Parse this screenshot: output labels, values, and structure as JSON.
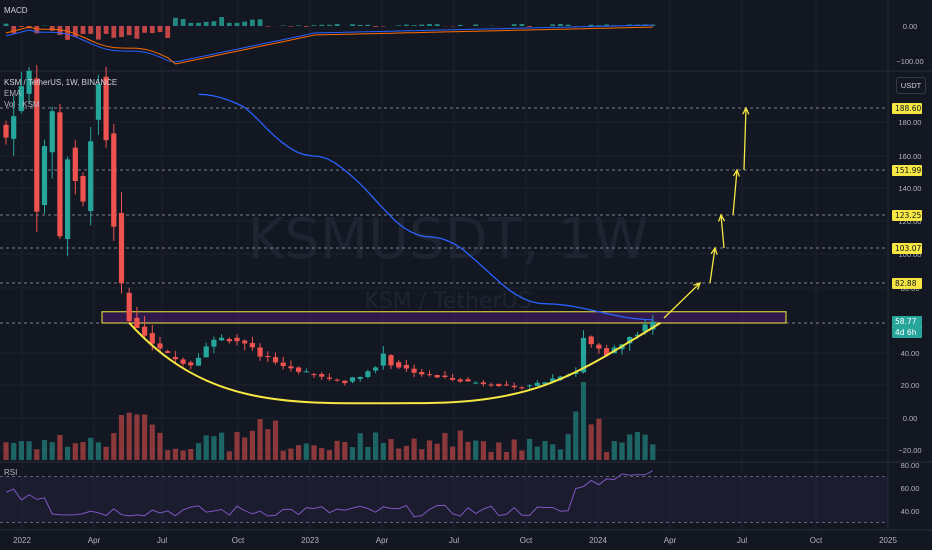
{
  "watermark": {
    "symbol": "KSMUSDT, 1W",
    "sub": "KSM / TetherUS"
  },
  "main_pane": {
    "title": "KSM / TetherUS, 1W, BINANCE",
    "ema_label": "EMA",
    "vol_label": "Vol · KSM",
    "currency_button": "USDT"
  },
  "macd_pane": {
    "label": "MACD",
    "axis_ticks": [
      "0.00",
      "−100.00"
    ]
  },
  "rsi_pane": {
    "label": "RSI",
    "axis_ticks": [
      "80.00",
      "60.00",
      "40.00"
    ]
  },
  "price_axis_ticks": [
    "180.00",
    "160.00",
    "140.00",
    "120.00",
    "100.00",
    "80.00",
    "40.00",
    "20.00",
    "0.00",
    "−20.00"
  ],
  "level_labels": [
    "188.60",
    "151.99",
    "123.25",
    "103.07",
    "82.88",
    "57.90"
  ],
  "current_price": {
    "price": "58.77",
    "countdown": "4d 6h"
  },
  "time_axis": [
    "2022",
    "Apr",
    "Jul",
    "Oct",
    "2023",
    "Apr",
    "Jul",
    "Oct",
    "2024",
    "Apr",
    "Jul",
    "Oct",
    "2025"
  ],
  "colors": {
    "background": "#131722",
    "up": "#26a69a",
    "down": "#ef5350",
    "ema": "#2962ff",
    "annotation": "#f5e642",
    "zone_fill": "#4a1d6e",
    "rsi": "#7e57c2"
  },
  "chart_data": {
    "type": "candlestick",
    "timeframe": "1W",
    "x_ticks": [
      "2022",
      "Apr",
      "Jul",
      "Oct",
      "2023",
      "Apr",
      "Jul",
      "Oct",
      "2024",
      "Apr",
      "Jul",
      "Oct",
      "2025"
    ],
    "y_ticks": [
      180,
      160,
      140,
      120,
      100,
      80,
      40,
      20,
      0,
      -20
    ],
    "price_path": [
      [
        0,
        170
      ],
      [
        3,
        230
      ],
      [
        4,
        130
      ],
      [
        6,
        190
      ],
      [
        7,
        110
      ],
      [
        8,
        160
      ],
      [
        10,
        130
      ],
      [
        11,
        175
      ],
      [
        12,
        220
      ],
      [
        13,
        170
      ],
      [
        14,
        120
      ],
      [
        15,
        80
      ],
      [
        16,
        60
      ],
      [
        18,
        52
      ],
      [
        20,
        42
      ],
      [
        22,
        36
      ],
      [
        24,
        33
      ],
      [
        26,
        44
      ],
      [
        28,
        50
      ],
      [
        31,
        46
      ],
      [
        33,
        38
      ],
      [
        36,
        32
      ],
      [
        38,
        29
      ],
      [
        40,
        26
      ],
      [
        42,
        24
      ],
      [
        44,
        22
      ],
      [
        46,
        26
      ],
      [
        48,
        31
      ],
      [
        49,
        40
      ],
      [
        50,
        33
      ],
      [
        52,
        30
      ],
      [
        54,
        27
      ],
      [
        56,
        25
      ],
      [
        58,
        24
      ],
      [
        60,
        22
      ],
      [
        62,
        21
      ],
      [
        64,
        20
      ],
      [
        66,
        18
      ],
      [
        68,
        20
      ],
      [
        70,
        22
      ],
      [
        72,
        26
      ],
      [
        74,
        28
      ],
      [
        75,
        50
      ],
      [
        76,
        44
      ],
      [
        78,
        40
      ],
      [
        80,
        45
      ],
      [
        82,
        52
      ],
      [
        84,
        58.8
      ]
    ],
    "ema_path": [
      [
        25,
        205
      ],
      [
        40,
        160
      ],
      [
        55,
        110
      ],
      [
        70,
        70
      ],
      [
        84,
        60
      ]
    ],
    "resistance_zone": [
      57.9,
      65
    ],
    "cup_curve": {
      "start": [
        16,
        58
      ],
      "bottom": [
        53,
        9
      ],
      "end": [
        85,
        58
      ]
    },
    "target_levels": [
      188.6,
      151.99,
      123.25,
      103.07,
      82.88,
      57.9
    ],
    "current_price": 58.77,
    "macd": {
      "ticks": [
        0,
        -100
      ]
    },
    "rsi": {
      "ticks": [
        80,
        60,
        40
      ],
      "last": 75
    }
  }
}
